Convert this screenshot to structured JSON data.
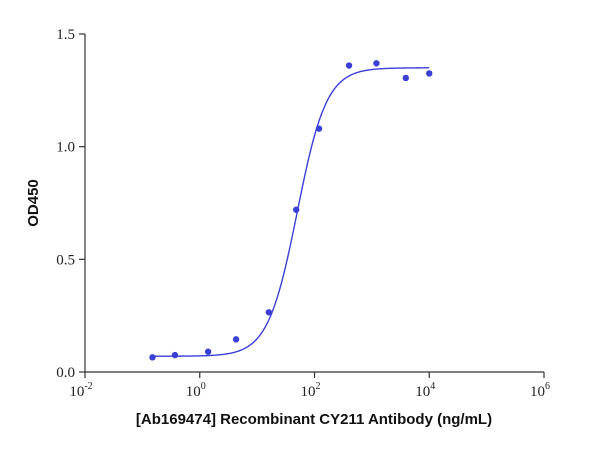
{
  "chart_data": {
    "type": "scatter",
    "xscale": "log10",
    "xlabel": "[Ab169474] Recombinant CY211 Antibody (ng/mL)",
    "ylabel": "OD450",
    "xlim": [
      0.01,
      1000000
    ],
    "ylim": [
      0,
      1.5
    ],
    "x_ticks": [
      {
        "base": "10",
        "exp": "-2",
        "value": 0.01
      },
      {
        "base": "10",
        "exp": "0",
        "value": 1
      },
      {
        "base": "10",
        "exp": "2",
        "value": 100
      },
      {
        "base": "10",
        "exp": "4",
        "value": 10000
      },
      {
        "base": "10",
        "exp": "6",
        "value": 1000000
      }
    ],
    "y_ticks": [
      {
        "label": "0.0",
        "value": 0.0
      },
      {
        "label": "0.5",
        "value": 0.5
      },
      {
        "label": "1.0",
        "value": 1.0
      },
      {
        "label": "1.5",
        "value": 1.5
      }
    ],
    "color": "#3a3fd6",
    "points": [
      {
        "x": 0.15,
        "y": 0.065
      },
      {
        "x": 0.37,
        "y": 0.075
      },
      {
        "x": 1.4,
        "y": 0.09
      },
      {
        "x": 4.3,
        "y": 0.145
      },
      {
        "x": 16,
        "y": 0.265
      },
      {
        "x": 48,
        "y": 0.72
      },
      {
        "x": 120,
        "y": 1.08
      },
      {
        "x": 400,
        "y": 1.36
      },
      {
        "x": 1200,
        "y": 1.37
      },
      {
        "x": 3900,
        "y": 1.305
      },
      {
        "x": 10000,
        "y": 1.325
      }
    ],
    "fit": {
      "model": "4PL",
      "bottom": 0.07,
      "top": 1.35,
      "ec50": 50,
      "hill": 1.7,
      "x_range": [
        0.15,
        10000
      ]
    }
  }
}
